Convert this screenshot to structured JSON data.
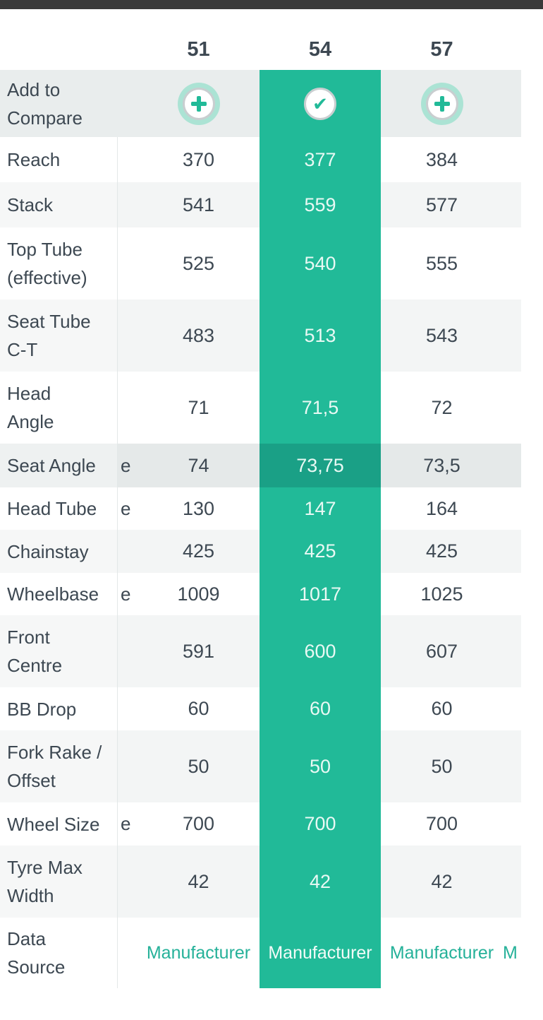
{
  "table": {
    "sizes": [
      "51",
      "54",
      "57"
    ],
    "selected_size": "54",
    "compare_row_label": "Add to\nCompare",
    "compare_selected_icon": "check-icon",
    "compare_unselected_icon": "plus-icon",
    "next_column_peek": "M",
    "rows": [
      {
        "label": "Reach",
        "values": [
          "370",
          "377",
          "384"
        ]
      },
      {
        "label": "Stack",
        "values": [
          "541",
          "559",
          "577"
        ]
      },
      {
        "label": "Top Tube\n(effective)",
        "values": [
          "525",
          "540",
          "555"
        ]
      },
      {
        "label": "Seat Tube\nC-T",
        "values": [
          "483",
          "513",
          "543"
        ]
      },
      {
        "label": "Head\nAngle",
        "values": [
          "71",
          "71,5",
          "72"
        ]
      },
      {
        "label": "Seat Angle",
        "values": [
          "74",
          "73,75",
          "73,5"
        ],
        "highlighted": true,
        "overflow_fragment": "e"
      },
      {
        "label": "Head Tube",
        "values": [
          "130",
          "147",
          "164"
        ],
        "overflow_fragment": "e"
      },
      {
        "label": "Chainstay",
        "values": [
          "425",
          "425",
          "425"
        ]
      },
      {
        "label": "Wheelbase",
        "values": [
          "1009",
          "1017",
          "1025"
        ],
        "overflow_fragment": "e"
      },
      {
        "label": "Front\nCentre",
        "values": [
          "591",
          "600",
          "607"
        ]
      },
      {
        "label": "BB Drop",
        "values": [
          "60",
          "60",
          "60"
        ]
      },
      {
        "label": "Fork Rake /\nOffset",
        "values": [
          "50",
          "50",
          "50"
        ]
      },
      {
        "label": "Wheel Size",
        "values": [
          "700",
          "700",
          "700"
        ],
        "overflow_fragment": "e"
      },
      {
        "label": "Tyre Max\nWidth",
        "values": [
          "42",
          "42",
          "42"
        ]
      },
      {
        "label": "Data\nSource",
        "values": [
          "Manufacturer",
          "Manufacturer",
          "Manufacturer"
        ],
        "links": true
      }
    ],
    "colors": {
      "teal": "#21ba98",
      "teal_dark": "#1aa086",
      "icon_halo": "#abe3d4",
      "icon_ring": "#c9ced0",
      "link_teal": "#25b199",
      "text_dark": "#3d4852",
      "stripe": "#f3f5f5",
      "stripe_label": "#f6f7f7",
      "compare_row_bg": "#e9eded",
      "highlight_bg": "#e5e9e9",
      "highlight_label_bg": "#eef1f1",
      "value_on_teal": "#e9f9f4",
      "topbar": "#3a3a3a"
    }
  }
}
